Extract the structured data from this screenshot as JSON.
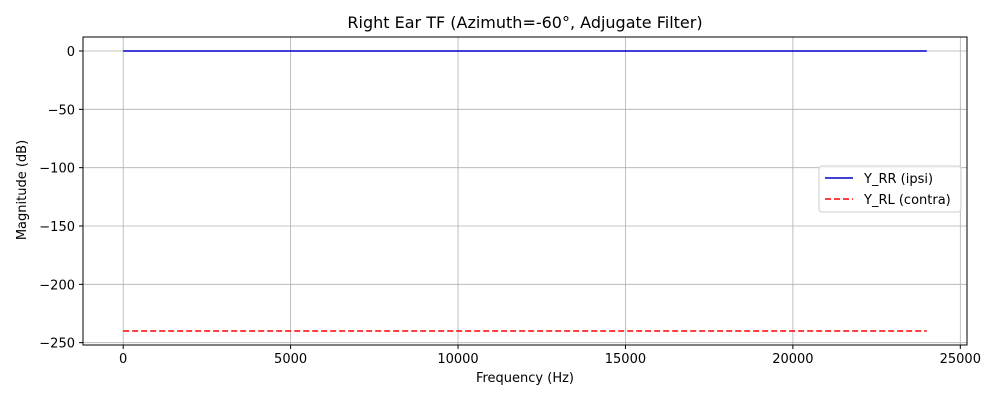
{
  "chart_data": {
    "type": "line",
    "title": "Right Ear TF (Azimuth=-60°, Adjugate Filter)",
    "xlabel": "Frequency (Hz)",
    "ylabel": "Magnitude (dB)",
    "xlim": [
      -1200,
      25200
    ],
    "ylim": [
      -252,
      12
    ],
    "xticks": [
      0,
      5000,
      10000,
      15000,
      20000,
      25000
    ],
    "yticks": [
      0,
      -50,
      -100,
      -150,
      -200,
      -250
    ],
    "xtick_labels": [
      "0",
      "5000",
      "10000",
      "15000",
      "20000",
      "25000"
    ],
    "ytick_labels": [
      "0",
      "−50",
      "−100",
      "−150",
      "−200",
      "−250"
    ],
    "grid": true,
    "legend_position": "center-right",
    "series": [
      {
        "name": "Y_RR (ipsi)",
        "x": [
          0,
          24000
        ],
        "y": [
          0,
          0
        ],
        "color": "#0000cc",
        "style": "solid"
      },
      {
        "name": "Y_RL (contra)",
        "x": [
          0,
          24000
        ],
        "y": [
          -240,
          -240
        ],
        "color": "#ff0000",
        "style": "dashed"
      }
    ]
  }
}
